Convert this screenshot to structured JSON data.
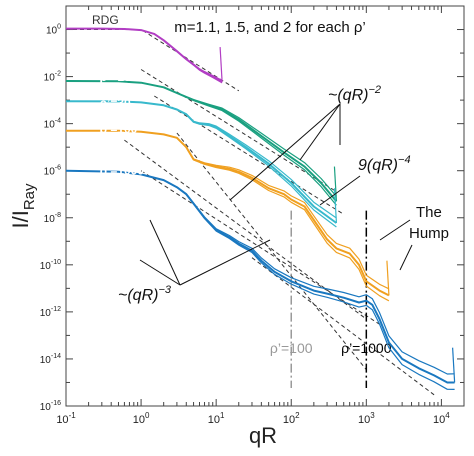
{
  "chart_data": {
    "type": "line",
    "title": "",
    "xlabel": "qR",
    "ylabel_main": "I/I",
    "ylabel_sub": "Ray",
    "xscale": "log",
    "yscale": "log",
    "xlim": [
      0.1,
      20000
    ],
    "ylim": [
      1e-16,
      10
    ],
    "x_tick_labels": [
      {
        "x": 0.1,
        "base": "10",
        "exp": "-1"
      },
      {
        "x": 1,
        "base": "10",
        "exp": "0"
      },
      {
        "x": 10,
        "base": "10",
        "exp": "1"
      },
      {
        "x": 100,
        "base": "10",
        "exp": "2"
      },
      {
        "x": 1000,
        "base": "10",
        "exp": "3"
      },
      {
        "x": 10000,
        "base": "10",
        "exp": "4"
      }
    ],
    "y_tick_labels": [
      {
        "y": 1,
        "base": "10",
        "exp": "0"
      },
      {
        "y": 0.01,
        "base": "10",
        "exp": "-2"
      },
      {
        "y": 0.0001,
        "base": "10",
        "exp": "-4"
      },
      {
        "y": 1e-06,
        "base": "10",
        "exp": "-6"
      },
      {
        "y": 1e-08,
        "base": "10",
        "exp": "-8"
      },
      {
        "y": 1e-10,
        "base": "10",
        "exp": "-10"
      },
      {
        "y": 1e-12,
        "base": "10",
        "exp": "-12"
      },
      {
        "y": 1e-14,
        "base": "10",
        "exp": "-14"
      },
      {
        "y": 1e-16,
        "base": "10",
        "exp": "-16"
      }
    ],
    "series": [
      {
        "name": "ρ’=3",
        "color": "#b23ec4",
        "label_pos": [
          0.28,
          0.0022
        ],
        "points": [
          [
            0.1,
            1.1
          ],
          [
            0.3,
            1.1
          ],
          [
            0.6,
            1.05
          ],
          [
            1,
            0.95
          ],
          [
            1.5,
            0.65
          ],
          [
            2,
            0.35
          ],
          [
            3,
            0.12
          ],
          [
            4,
            0.055
          ],
          [
            5,
            0.032
          ],
          [
            6,
            0.02
          ],
          [
            7,
            0.015
          ],
          [
            9,
            0.01
          ],
          [
            12,
            0.006
          ]
        ]
      },
      {
        "name": "ρ’=10",
        "color": "#1aa080",
        "label_pos": [
          0.28,
          0.0066
        ],
        "points": [
          [
            0.1,
            0.0065
          ],
          [
            0.5,
            0.0063
          ],
          [
            1,
            0.0055
          ],
          [
            2,
            0.0035
          ],
          [
            3,
            0.002
          ],
          [
            5,
            0.001
          ],
          [
            8,
            0.0006
          ],
          [
            12,
            0.0004
          ],
          [
            20,
            0.00015
          ],
          [
            40,
            3e-05
          ],
          [
            80,
            6e-06
          ],
          [
            150,
            1.5e-06
          ],
          [
            250,
            3e-07
          ],
          [
            400,
            5e-08
          ]
        ]
      },
      {
        "name": "ρ’=30",
        "color": "#38b9cc",
        "label_pos": [
          0.28,
          0.0005
        ],
        "points": [
          [
            0.1,
            0.0009
          ],
          [
            0.5,
            0.00088
          ],
          [
            1,
            0.0008
          ],
          [
            2,
            0.0006
          ],
          [
            3,
            0.0004
          ],
          [
            4,
            0.00025
          ],
          [
            5,
            0.00012
          ],
          [
            6,
            0.0001
          ],
          [
            8,
            9e-05
          ],
          [
            10,
            7e-05
          ],
          [
            15,
            3e-05
          ],
          [
            25,
            1e-05
          ],
          [
            50,
            2e-06
          ],
          [
            100,
            3e-07
          ],
          [
            200,
            3e-08
          ],
          [
            400,
            6e-09
          ]
        ]
      },
      {
        "name": "ρ’=100",
        "color": "#f0a020",
        "label_pos": [
          0.28,
          4e-05
        ],
        "points": [
          [
            0.1,
            5e-05
          ],
          [
            0.5,
            5e-05
          ],
          [
            1,
            4.5e-05
          ],
          [
            2,
            3.5e-05
          ],
          [
            3,
            2.5e-05
          ],
          [
            4,
            1e-05
          ],
          [
            5,
            3e-06
          ],
          [
            7,
            2e-06
          ],
          [
            10,
            1.5e-06
          ],
          [
            15,
            1.2e-06
          ],
          [
            20,
            9e-07
          ],
          [
            30,
            5e-07
          ],
          [
            50,
            1.8e-07
          ],
          [
            80,
            1e-07
          ],
          [
            100,
            6e-08
          ],
          [
            150,
            3e-08
          ],
          [
            200,
            8e-09
          ],
          [
            300,
            1.2e-09
          ],
          [
            400,
            5e-10
          ],
          [
            600,
            3e-10
          ],
          [
            800,
            1e-10
          ],
          [
            1000,
            2e-11
          ],
          [
            1500,
            8e-12
          ],
          [
            2000,
            5e-12
          ]
        ]
      },
      {
        "name": "ρ’=1000",
        "color": "#1a78c0",
        "label_pos": [
          0.28,
          7e-07
        ],
        "points": [
          [
            0.1,
            1e-06
          ],
          [
            0.5,
            9e-07
          ],
          [
            1,
            7e-07
          ],
          [
            2,
            4e-07
          ],
          [
            3,
            2e-07
          ],
          [
            4,
            1e-07
          ],
          [
            5,
            4e-08
          ],
          [
            7,
            1e-08
          ],
          [
            10,
            3e-09
          ],
          [
            15,
            1.5e-09
          ],
          [
            20,
            8e-10
          ],
          [
            30,
            4e-10
          ],
          [
            40,
            1.5e-10
          ],
          [
            60,
            5e-11
          ],
          [
            100,
            2e-11
          ],
          [
            200,
            8e-12
          ],
          [
            300,
            6e-12
          ],
          [
            500,
            4e-12
          ],
          [
            800,
            2.5e-12
          ],
          [
            1000,
            3e-12
          ],
          [
            1200,
            2e-12
          ],
          [
            1500,
            5e-13
          ],
          [
            2000,
            5e-14
          ],
          [
            3000,
            1e-14
          ],
          [
            5000,
            4e-15
          ],
          [
            8000,
            2e-15
          ],
          [
            12000,
            1e-15
          ],
          [
            15000,
            1e-15
          ]
        ]
      }
    ],
    "guide_lines": [
      {
        "name": "RDG",
        "points": [
          [
            0.1,
            1
          ],
          [
            1,
            1
          ],
          [
            2,
            0.25
          ],
          [
            20,
            0.0025
          ]
        ]
      },
      {
        "name": "slope-2 a",
        "points": [
          [
            1,
            0.02
          ],
          [
            400,
            1.3e-07
          ]
        ]
      },
      {
        "name": "slope-2 b",
        "points": [
          [
            1.5,
            0.0015
          ],
          [
            500,
            1.4e-08
          ]
        ]
      },
      {
        "name": "slope-4",
        "points": [
          [
            3,
            4e-05
          ],
          [
            1000,
            3.5e-15
          ]
        ]
      },
      {
        "name": "slope-3 a",
        "points": [
          [
            0.6,
            2e-05
          ],
          [
            1000,
            5e-13
          ]
        ]
      },
      {
        "name": "slope-3 b",
        "points": [
          [
            1,
            1e-06
          ],
          [
            1500,
            3e-13
          ]
        ]
      },
      {
        "name": "slope-3 c",
        "points": [
          [
            30,
            2e-10
          ],
          [
            8000,
            3e-16
          ]
        ]
      }
    ],
    "markers": [
      {
        "x": 100,
        "label": "ρ’=100",
        "color": "#999999"
      },
      {
        "x": 1000,
        "label": "ρ’=1000",
        "color": "#000000"
      }
    ],
    "annotations": {
      "rdg": "RDG",
      "legend_text": "m=1.1, 1.5, and 2 for each ρ’",
      "slope_m2": "~(qR)",
      "slope_m2_exp": "−2",
      "slope_m4": "9(qR)",
      "slope_m4_exp": "−4",
      "slope_m3": "~(qR)",
      "slope_m3_exp": "−3",
      "hump_line1": "The",
      "hump_line2": "Hump"
    },
    "grid": false
  }
}
